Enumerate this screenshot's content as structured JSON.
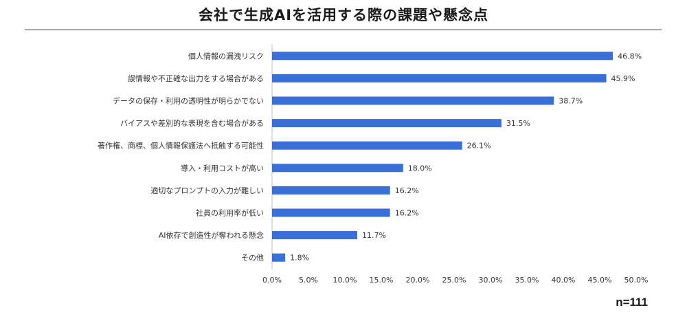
{
  "chart_data": {
    "type": "bar",
    "orientation": "horizontal",
    "title": "会社で生成AIを活用する際の課題や懸念点",
    "categories": [
      "個人情報の漏洩リスク",
      "誤情報や不正確な出力をする場合がある",
      "データの保存・利用の透明性が明らかでない",
      "バイアスや差別的な表現を含む場合がある",
      "著作権、商標、個人情報保護法へ抵触する可能性",
      "導入・利用コストが高い",
      "適切なプロンプトの入力が難しい",
      "社員の利用率が低い",
      "AI依存で創造性が奪われる懸念",
      "その他"
    ],
    "values": [
      46.8,
      45.9,
      38.7,
      31.5,
      26.1,
      18.0,
      16.2,
      16.2,
      11.7,
      1.8
    ],
    "value_labels": [
      "46.8%",
      "45.9%",
      "38.7%",
      "31.5%",
      "26.1%",
      "18.0%",
      "16.2%",
      "16.2%",
      "11.7%",
      "1.8%"
    ],
    "xlim": [
      0,
      50
    ],
    "x_ticks": [
      "0.0%",
      "5.0%",
      "10.0%",
      "15.0%",
      "20.0%",
      "25.0%",
      "30.0%",
      "35.0%",
      "40.0%",
      "45.0%",
      "50.0%"
    ],
    "grid": false,
    "bar_color": "#3a6fd8",
    "axis_color": "#bfbfbf"
  },
  "footnote": "n=111"
}
